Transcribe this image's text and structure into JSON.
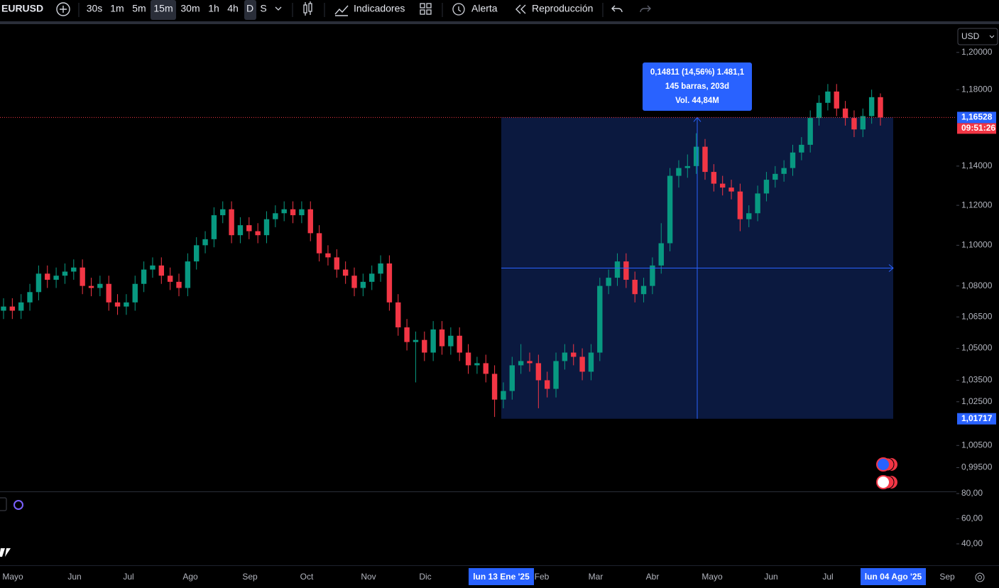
{
  "toolbar": {
    "symbol": "EURUSD",
    "intervals": [
      "30s",
      "1m",
      "5m",
      "15m",
      "30m",
      "1h",
      "4h",
      "D",
      "S"
    ],
    "buttons": [
      "Indicadores",
      "Alerta",
      "Reproducción"
    ]
  },
  "chart_data": {
    "type": "candlestick",
    "log_scale": true,
    "up_color": "#089981",
    "down_color": "#f23645",
    "ylim": [
      0.985,
      1.215
    ],
    "yticks": [
      {
        "value": 1.2,
        "label": "1,20000"
      },
      {
        "value": 1.18,
        "label": "1,18000"
      },
      {
        "value": 1.14,
        "label": "1,14000"
      },
      {
        "value": 1.12,
        "label": "1,12000"
      },
      {
        "value": 1.1,
        "label": "1,10000"
      },
      {
        "value": 1.08,
        "label": "1,08000"
      },
      {
        "value": 1.065,
        "label": "1,06500"
      },
      {
        "value": 1.05,
        "label": "1,05000"
      },
      {
        "value": 1.035,
        "label": "1,03500"
      },
      {
        "value": 1.025,
        "label": "1,02500"
      },
      {
        "value": 1.005,
        "label": "1,00500"
      },
      {
        "value": 0.995,
        "label": "0,99500"
      }
    ],
    "currency": "USD",
    "x_labels": [
      "Mayo",
      "Jun",
      "Jul",
      "Ago",
      "Sep",
      "Oct",
      "Nov",
      "Dic",
      "Feb",
      "Mar",
      "Abr",
      "Mayo",
      "Jun",
      "Jul",
      "Sep"
    ],
    "highlighted_x_labels": [
      "lun 13 Ene '25",
      "lun 04 Ago '25"
    ],
    "last_price": {
      "value": 1.16528,
      "label": "1,16528"
    },
    "countdown": "09:51:26",
    "measure": {
      "low": {
        "value": 1.01717,
        "label": "1,01717"
      },
      "lines": [
        "0,14811 (14,56%) 1.481,1",
        "145 barras, 203d",
        "Vol. 44,84M"
      ]
    },
    "lower_pane": {
      "ylim": [
        23,
        81.7
      ],
      "yticks": [
        {
          "value": 80,
          "label": "80,00"
        },
        {
          "value": 60,
          "label": "60,00"
        },
        {
          "value": 40,
          "label": "40,00"
        }
      ]
    },
    "ohlc": [
      [
        1.068,
        1.074,
        1.064,
        1.07
      ],
      [
        1.07,
        1.074,
        1.064,
        1.068
      ],
      [
        1.068,
        1.076,
        1.064,
        1.072
      ],
      [
        1.072,
        1.081,
        1.068,
        1.077
      ],
      [
        1.077,
        1.09,
        1.073,
        1.086
      ],
      [
        1.086,
        1.09,
        1.079,
        1.083
      ],
      [
        1.083,
        1.089,
        1.079,
        1.085
      ],
      [
        1.085,
        1.091,
        1.081,
        1.087
      ],
      [
        1.087,
        1.093,
        1.083,
        1.089
      ],
      [
        1.089,
        1.093,
        1.076,
        1.08
      ],
      [
        1.08,
        1.084,
        1.075,
        1.079
      ],
      [
        1.079,
        1.085,
        1.075,
        1.081
      ],
      [
        1.081,
        1.085,
        1.068,
        1.072
      ],
      [
        1.072,
        1.076,
        1.066,
        1.07
      ],
      [
        1.07,
        1.076,
        1.066,
        1.072
      ],
      [
        1.072,
        1.085,
        1.068,
        1.081
      ],
      [
        1.081,
        1.092,
        1.077,
        1.088
      ],
      [
        1.088,
        1.094,
        1.084,
        1.09
      ],
      [
        1.09,
        1.094,
        1.081,
        1.085
      ],
      [
        1.085,
        1.089,
        1.078,
        1.082
      ],
      [
        1.082,
        1.086,
        1.075,
        1.079
      ],
      [
        1.079,
        1.096,
        1.075,
        1.092
      ],
      [
        1.092,
        1.104,
        1.088,
        1.1
      ],
      [
        1.1,
        1.107,
        1.096,
        1.103
      ],
      [
        1.103,
        1.119,
        1.099,
        1.115
      ],
      [
        1.115,
        1.122,
        1.111,
        1.118
      ],
      [
        1.118,
        1.122,
        1.101,
        1.105
      ],
      [
        1.105,
        1.114,
        1.101,
        1.11
      ],
      [
        1.11,
        1.114,
        1.103,
        1.107
      ],
      [
        1.107,
        1.111,
        1.101,
        1.105
      ],
      [
        1.105,
        1.117,
        1.101,
        1.113
      ],
      [
        1.113,
        1.12,
        1.109,
        1.116
      ],
      [
        1.116,
        1.122,
        1.112,
        1.118
      ],
      [
        1.118,
        1.122,
        1.111,
        1.115
      ],
      [
        1.115,
        1.122,
        1.111,
        1.118
      ],
      [
        1.118,
        1.122,
        1.102,
        1.106
      ],
      [
        1.106,
        1.11,
        1.092,
        1.096
      ],
      [
        1.096,
        1.1,
        1.09,
        1.094
      ],
      [
        1.094,
        1.098,
        1.084,
        1.088
      ],
      [
        1.088,
        1.092,
        1.081,
        1.085
      ],
      [
        1.085,
        1.089,
        1.075,
        1.079
      ],
      [
        1.079,
        1.086,
        1.075,
        1.082
      ],
      [
        1.082,
        1.09,
        1.078,
        1.086
      ],
      [
        1.086,
        1.095,
        1.082,
        1.091
      ],
      [
        1.091,
        1.095,
        1.068,
        1.072
      ],
      [
        1.072,
        1.076,
        1.056,
        1.06
      ],
      [
        1.06,
        1.064,
        1.049,
        1.053
      ],
      [
        1.053,
        1.058,
        1.034,
        1.054
      ],
      [
        1.054,
        1.058,
        1.044,
        1.048
      ],
      [
        1.048,
        1.063,
        1.044,
        1.059
      ],
      [
        1.059,
        1.063,
        1.047,
        1.051
      ],
      [
        1.051,
        1.06,
        1.047,
        1.056
      ],
      [
        1.056,
        1.06,
        1.044,
        1.048
      ],
      [
        1.048,
        1.052,
        1.038,
        1.042
      ],
      [
        1.042,
        1.046,
        1.038,
        1.043
      ],
      [
        1.043,
        1.047,
        1.034,
        1.038
      ],
      [
        1.038,
        1.042,
        1.018,
        1.026
      ],
      [
        1.026,
        1.034,
        1.022,
        1.03
      ],
      [
        1.03,
        1.046,
        1.026,
        1.042
      ],
      [
        1.042,
        1.052,
        1.038,
        1.044
      ],
      [
        1.044,
        1.048,
        1.039,
        1.043
      ],
      [
        1.043,
        1.047,
        1.022,
        1.035
      ],
      [
        1.035,
        1.039,
        1.027,
        1.031
      ],
      [
        1.031,
        1.048,
        1.027,
        1.044
      ],
      [
        1.044,
        1.052,
        1.04,
        1.048
      ],
      [
        1.048,
        1.052,
        1.042,
        1.046
      ],
      [
        1.046,
        1.05,
        1.035,
        1.039
      ],
      [
        1.039,
        1.052,
        1.035,
        1.048
      ],
      [
        1.048,
        1.084,
        1.044,
        1.08
      ],
      [
        1.08,
        1.088,
        1.076,
        1.084
      ],
      [
        1.084,
        1.096,
        1.08,
        1.092
      ],
      [
        1.092,
        1.096,
        1.079,
        1.083
      ],
      [
        1.083,
        1.087,
        1.072,
        1.076
      ],
      [
        1.076,
        1.084,
        1.072,
        1.08
      ],
      [
        1.08,
        1.094,
        1.076,
        1.09
      ],
      [
        1.09,
        1.111,
        1.086,
        1.101
      ],
      [
        1.101,
        1.139,
        1.097,
        1.135
      ],
      [
        1.135,
        1.143,
        1.129,
        1.139
      ],
      [
        1.139,
        1.146,
        1.134,
        1.14
      ],
      [
        1.14,
        1.157,
        1.136,
        1.15
      ],
      [
        1.15,
        1.154,
        1.133,
        1.137
      ],
      [
        1.137,
        1.141,
        1.127,
        1.131
      ],
      [
        1.131,
        1.135,
        1.125,
        1.129
      ],
      [
        1.129,
        1.133,
        1.123,
        1.127
      ],
      [
        1.127,
        1.131,
        1.107,
        1.113
      ],
      [
        1.113,
        1.12,
        1.109,
        1.116
      ],
      [
        1.116,
        1.13,
        1.112,
        1.126
      ],
      [
        1.126,
        1.137,
        1.122,
        1.133
      ],
      [
        1.133,
        1.14,
        1.129,
        1.136
      ],
      [
        1.136,
        1.143,
        1.132,
        1.139
      ],
      [
        1.139,
        1.151,
        1.135,
        1.147
      ],
      [
        1.147,
        1.155,
        1.143,
        1.151
      ],
      [
        1.151,
        1.169,
        1.147,
        1.165
      ],
      [
        1.165,
        1.177,
        1.161,
        1.173
      ],
      [
        1.173,
        1.183,
        1.169,
        1.179
      ],
      [
        1.179,
        1.183,
        1.166,
        1.17
      ],
      [
        1.17,
        1.174,
        1.161,
        1.165
      ],
      [
        1.165,
        1.169,
        1.155,
        1.159
      ],
      [
        1.159,
        1.17,
        1.155,
        1.166
      ],
      [
        1.166,
        1.18,
        1.162,
        1.176
      ],
      [
        1.176,
        1.178,
        1.161,
        1.16528
      ]
    ]
  }
}
